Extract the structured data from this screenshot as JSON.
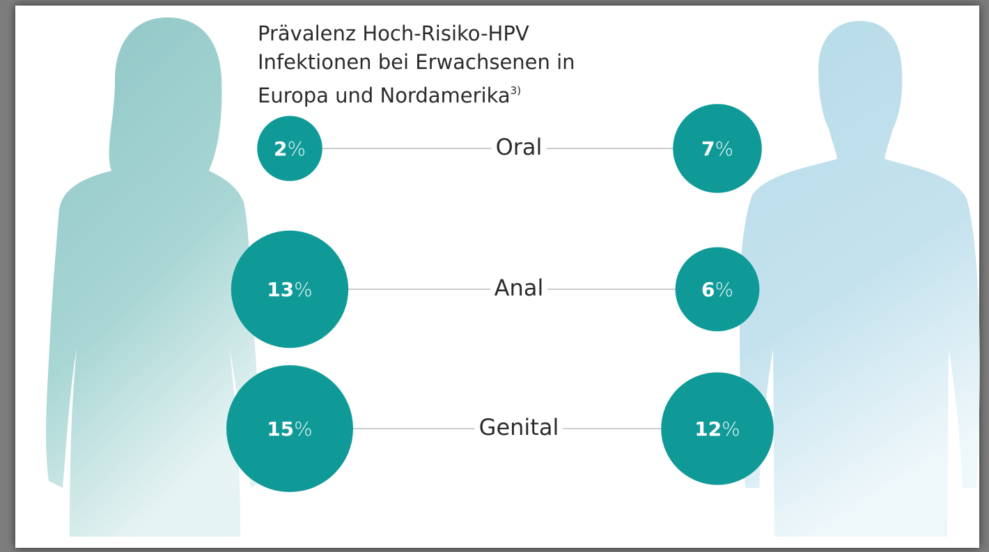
{
  "chart_data": {
    "type": "bubble",
    "title": "Prävalenz Hoch-Risiko-HPV Infektionen bei Erwachsenen in Europa und Nordamerika",
    "title_note": "3)",
    "categories": [
      "Oral",
      "Anal",
      "Genital"
    ],
    "series": [
      {
        "color": "#0f9a98",
        "values": [
          2,
          13,
          15
        ],
        "value_labels": [
          "2%",
          "13%",
          "15%"
        ]
      },
      {
        "color": "#0f9a98",
        "values": [
          7,
          6,
          12
        ],
        "value_labels": [
          "7%",
          "6%",
          "12%"
        ]
      }
    ]
  }
}
